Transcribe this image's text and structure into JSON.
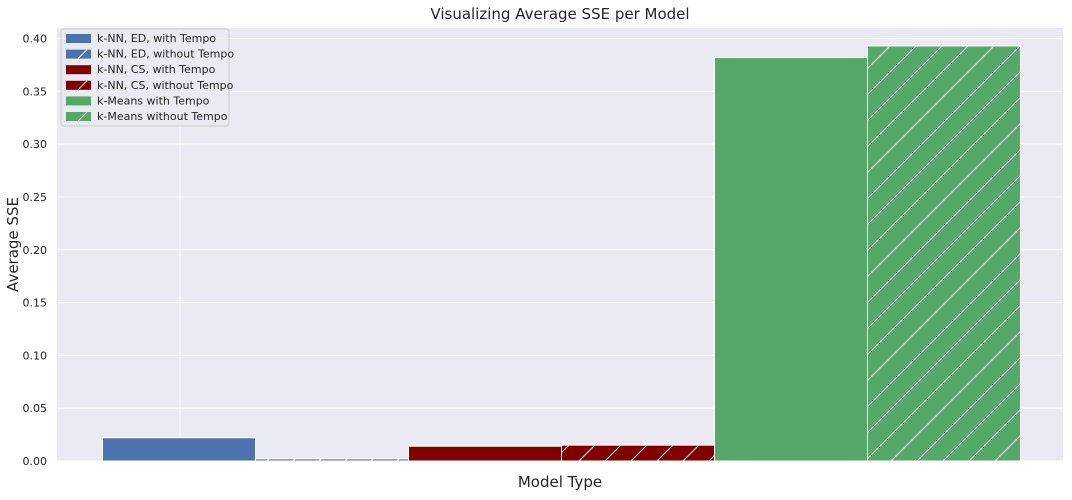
{
  "chart_data": {
    "type": "bar",
    "title": "Visualizing Average SSE per Model",
    "xlabel": "Model Type",
    "ylabel": "Average SSE",
    "ylim": [
      0,
      0.41
    ],
    "yticks": [
      "0.00",
      "0.05",
      "0.10",
      "0.15",
      "0.20",
      "0.25",
      "0.30",
      "0.35",
      "0.40"
    ],
    "grid": true,
    "legend_position": "top-left",
    "background_color": "#eaeaf2",
    "series": [
      {
        "name": "k-NN, ED, with Tempo",
        "value": 0.022,
        "color": "#4c72b0",
        "hatch": false
      },
      {
        "name": "k-NN, ED, without Tempo",
        "value": 0.002,
        "color": "#4c72b0",
        "hatch": true
      },
      {
        "name": "k-NN, CS, with Tempo",
        "value": 0.014,
        "color": "#800000",
        "hatch": false
      },
      {
        "name": "k-NN, CS, without Tempo",
        "value": 0.015,
        "color": "#800000",
        "hatch": true
      },
      {
        "name": "k-Means with Tempo",
        "value": 0.382,
        "color": "#55a868",
        "hatch": false
      },
      {
        "name": "k-Means without Tempo",
        "value": 0.393,
        "color": "#55a868",
        "hatch": true
      }
    ]
  }
}
